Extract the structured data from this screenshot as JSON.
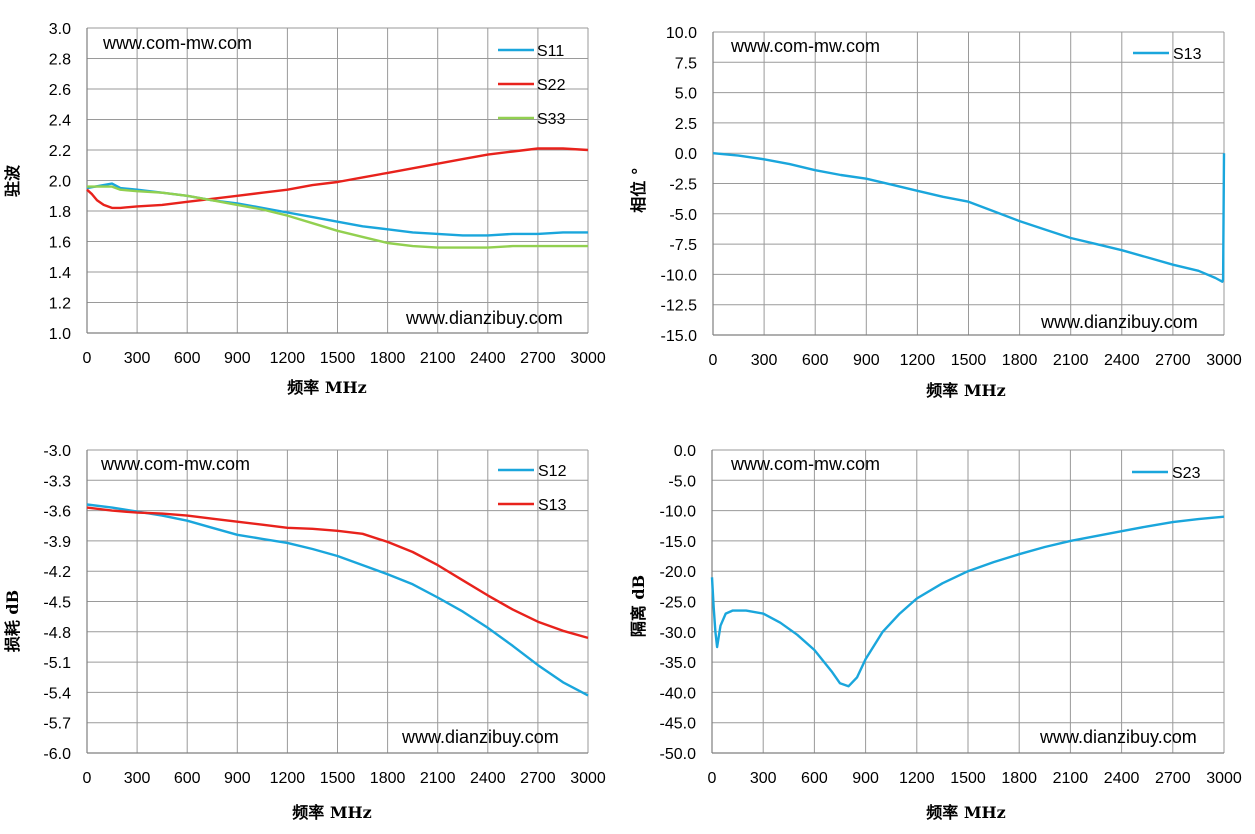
{
  "chart_data": [
    {
      "type": "line",
      "xlabel": "频率 MHz",
      "ylabel": "驻波",
      "xlim": [
        0,
        3000
      ],
      "ylim": [
        1.0,
        3.0
      ],
      "x_ticks": [
        "0",
        "300",
        "600",
        "900",
        "1200",
        "1500",
        "1800",
        "2100",
        "2400",
        "2700",
        "3000"
      ],
      "y_ticks": [
        "1.0",
        "1.2",
        "1.4",
        "1.6",
        "1.8",
        "2.0",
        "2.2",
        "2.4",
        "2.6",
        "2.8",
        "3.0"
      ],
      "grid": true,
      "legend_position": "top-right",
      "annotations": [
        "www.com-mw.com",
        "www.dianzibuy.com"
      ],
      "series": [
        {
          "name": "S11",
          "color": "#1aa6dc",
          "x": [
            0,
            100,
            150,
            200,
            300,
            450,
            600,
            750,
            900,
            1050,
            1200,
            1350,
            1500,
            1650,
            1800,
            1950,
            2100,
            2250,
            2400,
            2550,
            2700,
            2850,
            3000
          ],
          "y": [
            1.95,
            1.97,
            1.98,
            1.95,
            1.94,
            1.92,
            1.9,
            1.87,
            1.85,
            1.82,
            1.79,
            1.76,
            1.73,
            1.7,
            1.68,
            1.66,
            1.65,
            1.64,
            1.64,
            1.65,
            1.65,
            1.66,
            1.66
          ]
        },
        {
          "name": "S22",
          "color": "#e8221c",
          "x": [
            0,
            30,
            60,
            100,
            150,
            200,
            300,
            450,
            600,
            750,
            900,
            1050,
            1200,
            1350,
            1500,
            1650,
            1800,
            1950,
            2100,
            2250,
            2400,
            2550,
            2700,
            2850,
            3000
          ],
          "y": [
            1.94,
            1.91,
            1.87,
            1.84,
            1.82,
            1.82,
            1.83,
            1.84,
            1.86,
            1.88,
            1.9,
            1.92,
            1.94,
            1.97,
            1.99,
            2.02,
            2.05,
            2.08,
            2.11,
            2.14,
            2.17,
            2.19,
            2.21,
            2.21,
            2.2
          ]
        },
        {
          "name": "S33",
          "color": "#92d050",
          "x": [
            0,
            100,
            150,
            200,
            300,
            450,
            600,
            750,
            900,
            1050,
            1200,
            1350,
            1500,
            1650,
            1800,
            1950,
            2100,
            2250,
            2400,
            2550,
            2700,
            2850,
            3000
          ],
          "y": [
            1.96,
            1.96,
            1.96,
            1.94,
            1.93,
            1.92,
            1.9,
            1.87,
            1.84,
            1.81,
            1.77,
            1.72,
            1.67,
            1.63,
            1.59,
            1.57,
            1.56,
            1.56,
            1.56,
            1.57,
            1.57,
            1.57,
            1.57
          ]
        }
      ]
    },
    {
      "type": "line",
      "xlabel": "频率 MHz",
      "ylabel": "相位 °",
      "xlim": [
        0,
        3000
      ],
      "ylim": [
        -15.0,
        10.0
      ],
      "x_ticks": [
        "0",
        "300",
        "600",
        "900",
        "1200",
        "1500",
        "1800",
        "2100",
        "2400",
        "2700",
        "3000"
      ],
      "y_ticks": [
        "-15.0",
        "-12.5",
        "-10.0",
        "-7.5",
        "-5.0",
        "-2.5",
        "0.0",
        "2.5",
        "5.0",
        "7.5",
        "10.0"
      ],
      "grid": true,
      "legend_position": "top-right",
      "annotations": [
        "www.com-mw.com",
        "www.dianzibuy.com"
      ],
      "series": [
        {
          "name": "S13",
          "color": "#1aa6dc",
          "x": [
            0,
            150,
            300,
            450,
            600,
            750,
            900,
            1050,
            1200,
            1350,
            1500,
            1650,
            1800,
            1950,
            2100,
            2250,
            2400,
            2550,
            2700,
            2850,
            2950,
            2990,
            2995,
            3000
          ],
          "y": [
            0.0,
            -0.2,
            -0.5,
            -0.9,
            -1.4,
            -1.8,
            -2.1,
            -2.6,
            -3.1,
            -3.6,
            -4.0,
            -4.8,
            -5.6,
            -6.3,
            -7.0,
            -7.5,
            -8.0,
            -8.6,
            -9.2,
            -9.7,
            -10.3,
            -10.6,
            -10.4,
            0.0
          ]
        }
      ]
    },
    {
      "type": "line",
      "xlabel": "频率 MHz",
      "ylabel": "损耗 dB",
      "xlim": [
        0,
        3000
      ],
      "ylim": [
        -6.0,
        -3.0
      ],
      "x_ticks": [
        "0",
        "300",
        "600",
        "900",
        "1200",
        "1500",
        "1800",
        "2100",
        "2400",
        "2700",
        "3000"
      ],
      "y_ticks": [
        "-6.0",
        "-5.7",
        "-5.4",
        "-5.1",
        "-4.8",
        "-4.5",
        "-4.2",
        "-3.9",
        "-3.6",
        "-3.3",
        "-3.0"
      ],
      "grid": true,
      "legend_position": "top-right",
      "annotations": [
        "www.com-mw.com",
        "www.dianzibuy.com"
      ],
      "series": [
        {
          "name": "S12",
          "color": "#1aa6dc",
          "x": [
            0,
            150,
            300,
            450,
            600,
            750,
            900,
            1050,
            1200,
            1350,
            1500,
            1650,
            1800,
            1950,
            2100,
            2250,
            2400,
            2550,
            2700,
            2850,
            3000
          ],
          "y": [
            -3.54,
            -3.57,
            -3.61,
            -3.65,
            -3.7,
            -3.77,
            -3.84,
            -3.88,
            -3.92,
            -3.98,
            -4.05,
            -4.14,
            -4.23,
            -4.33,
            -4.46,
            -4.6,
            -4.76,
            -4.94,
            -5.13,
            -5.3,
            -5.43
          ]
        },
        {
          "name": "S13",
          "color": "#e8221c",
          "x": [
            0,
            150,
            300,
            450,
            600,
            750,
            900,
            1050,
            1200,
            1350,
            1500,
            1650,
            1800,
            1950,
            2100,
            2250,
            2400,
            2550,
            2700,
            2850,
            3000
          ],
          "y": [
            -3.57,
            -3.6,
            -3.62,
            -3.63,
            -3.65,
            -3.68,
            -3.71,
            -3.74,
            -3.77,
            -3.78,
            -3.8,
            -3.83,
            -3.91,
            -4.01,
            -4.14,
            -4.29,
            -4.44,
            -4.58,
            -4.7,
            -4.79,
            -4.86
          ]
        }
      ]
    },
    {
      "type": "line",
      "xlabel": "频率 MHz",
      "ylabel": "隔离 dB",
      "xlim": [
        0,
        3000
      ],
      "ylim": [
        -50.0,
        0.0
      ],
      "x_ticks": [
        "0",
        "300",
        "600",
        "900",
        "1200",
        "1500",
        "1800",
        "2100",
        "2400",
        "2700",
        "3000"
      ],
      "y_ticks": [
        "-50.0",
        "-45.0",
        "-40.0",
        "-35.0",
        "-30.0",
        "-25.0",
        "-20.0",
        "-15.0",
        "-10.0",
        "-5.0",
        "0.0"
      ],
      "grid": true,
      "legend_position": "top-right",
      "annotations": [
        "www.com-mw.com",
        "www.dianzibuy.com"
      ],
      "series": [
        {
          "name": "S23",
          "color": "#1aa6dc",
          "x": [
            0,
            10,
            20,
            30,
            50,
            80,
            120,
            200,
            300,
            400,
            500,
            600,
            700,
            750,
            800,
            850,
            900,
            1000,
            1100,
            1200,
            1350,
            1500,
            1650,
            1800,
            1950,
            2100,
            2250,
            2400,
            2550,
            2700,
            2850,
            3000
          ],
          "y": [
            -21,
            -26,
            -30,
            -32.5,
            -29,
            -27,
            -26.5,
            -26.5,
            -27,
            -28.5,
            -30.5,
            -33,
            -36.5,
            -38.5,
            -39,
            -37.5,
            -34.5,
            -30,
            -27,
            -24.5,
            -22,
            -20,
            -18.5,
            -17.2,
            -16,
            -15,
            -14.2,
            -13.4,
            -12.6,
            -11.9,
            -11.4,
            -11
          ]
        }
      ]
    }
  ]
}
